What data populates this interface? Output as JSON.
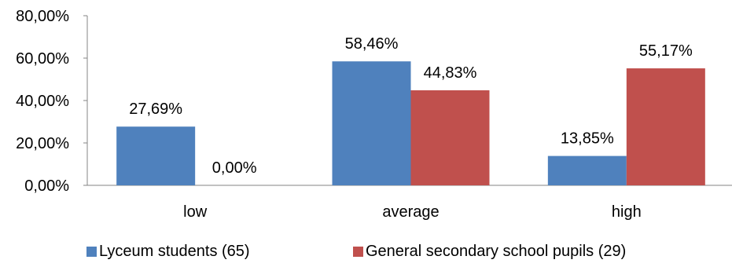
{
  "chart_data": {
    "type": "bar",
    "categories": [
      "low",
      "average",
      "high"
    ],
    "series": [
      {
        "name": "Lyceum students (65)",
        "color": "#4F81BD",
        "values": [
          27.69,
          58.46,
          13.85
        ],
        "labels": [
          "27,69%",
          "58,46%",
          "13,85%"
        ]
      },
      {
        "name": "General secondary school pupils (29)",
        "color": "#C0504D",
        "values": [
          0.0,
          44.83,
          55.17
        ],
        "labels": [
          "0,00%",
          "44,83%",
          "55,17%"
        ]
      }
    ],
    "ylim": [
      0,
      80
    ],
    "yticks": [
      0,
      20,
      40,
      60,
      80
    ],
    "ytick_labels": [
      "0,00%",
      "20,00%",
      "40,00%",
      "60,00%",
      "80,00%"
    ],
    "grid": false,
    "legend_position": "bottom"
  }
}
